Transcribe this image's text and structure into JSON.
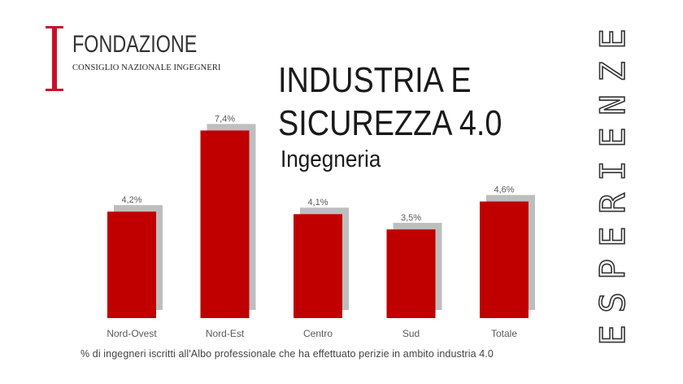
{
  "logo": {
    "name": "FONDAZIONE",
    "subtitle": "CONSIGLIO NAZIONALE INGEGNERI",
    "brand_color": "#c8102e"
  },
  "title_line1": "INDUSTRIA E",
  "title_line2": "SICUREZZA 4.0",
  "subtitle": "Ingegneria",
  "vertical_word": "ESPERIENZE",
  "footnote": "% di ingegneri iscritti all'Albo professionale  che ha effettuato perizie in  ambito industria 4.0",
  "chart_data": {
    "type": "bar",
    "categories": [
      "Nord-Ovest",
      "Nord-Est",
      "Centro",
      "Sud",
      "Totale"
    ],
    "values": [
      4.2,
      7.4,
      4.1,
      3.5,
      4.6
    ],
    "data_labels": [
      "4,2%",
      "7,4%",
      "4,1%",
      "3,5%",
      "4,6%"
    ],
    "ylim": [
      0,
      8.6
    ],
    "bar_color": "#c00000",
    "shadow_color": "#b3b3b3",
    "grid": false,
    "legend": "none"
  }
}
